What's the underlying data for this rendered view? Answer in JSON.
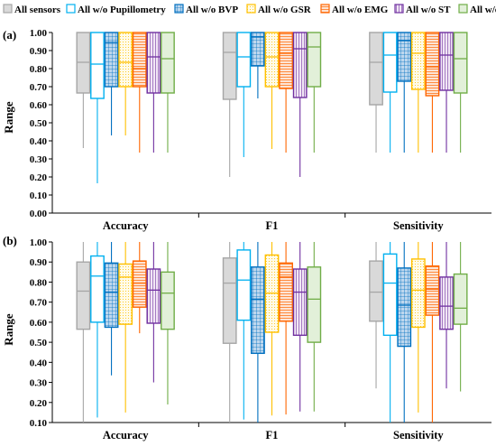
{
  "chart_data": [
    {
      "panel_label": "(a)",
      "type": "boxplot",
      "ylabel": "Range",
      "ylim": [
        0.0,
        1.0
      ],
      "yticks": [
        "0.00",
        "0.10",
        "0.20",
        "0.30",
        "0.40",
        "0.50",
        "0.60",
        "0.70",
        "0.80",
        "0.90",
        "1.00"
      ],
      "categories": [
        "Accuracy",
        "F1",
        "Sensitivity"
      ],
      "series": [
        {
          "name": "All sensors",
          "boxes": [
            {
              "min": 0.36,
              "q1": 0.665,
              "median": 0.835,
              "q3": 1.0,
              "max": 1.0
            },
            {
              "min": 0.2,
              "q1": 0.63,
              "median": 0.89,
              "q3": 1.0,
              "max": 1.0
            },
            {
              "min": 0.335,
              "q1": 0.6,
              "median": 0.835,
              "q3": 1.0,
              "max": 1.0
            }
          ]
        },
        {
          "name": "All w/o Pupillometry",
          "boxes": [
            {
              "min": 0.165,
              "q1": 0.635,
              "median": 0.825,
              "q3": 1.0,
              "max": 1.0
            },
            {
              "min": 0.31,
              "q1": 0.7,
              "median": 0.865,
              "q3": 1.0,
              "max": 1.0
            },
            {
              "min": 0.335,
              "q1": 0.67,
              "median": 0.875,
              "q3": 1.0,
              "max": 1.0
            }
          ]
        },
        {
          "name": "All w/o BVP",
          "boxes": [
            {
              "min": 0.43,
              "q1": 0.7,
              "median": 0.945,
              "q3": 1.0,
              "max": 1.0
            },
            {
              "min": 0.635,
              "q1": 0.815,
              "median": 0.975,
              "q3": 1.0,
              "max": 1.0
            },
            {
              "min": 0.335,
              "q1": 0.73,
              "median": 0.955,
              "q3": 1.0,
              "max": 1.0
            }
          ]
        },
        {
          "name": "All w/o GSR",
          "boxes": [
            {
              "min": 0.43,
              "q1": 0.7,
              "median": 0.835,
              "q3": 1.0,
              "max": 1.0
            },
            {
              "min": 0.355,
              "q1": 0.7,
              "median": 0.865,
              "q3": 1.0,
              "max": 1.0
            },
            {
              "min": 0.335,
              "q1": 0.685,
              "median": 0.885,
              "q3": 1.0,
              "max": 1.0
            }
          ]
        },
        {
          "name": "All w/o EMG",
          "boxes": [
            {
              "min": 0.335,
              "q1": 0.7,
              "median": 0.8,
              "q3": 1.0,
              "max": 1.0
            },
            {
              "min": 0.335,
              "q1": 0.69,
              "median": 0.885,
              "q3": 1.0,
              "max": 1.0
            },
            {
              "min": 0.335,
              "q1": 0.65,
              "median": 0.81,
              "q3": 1.0,
              "max": 1.0
            }
          ]
        },
        {
          "name": "All w/o ST",
          "boxes": [
            {
              "min": 0.335,
              "q1": 0.665,
              "median": 0.865,
              "q3": 1.0,
              "max": 1.0
            },
            {
              "min": 0.2,
              "q1": 0.64,
              "median": 0.91,
              "q3": 1.0,
              "max": 1.0
            },
            {
              "min": 0.335,
              "q1": 0.68,
              "median": 0.875,
              "q3": 1.0,
              "max": 1.0
            }
          ]
        },
        {
          "name": "All w/o RR",
          "boxes": [
            {
              "min": 0.335,
              "q1": 0.665,
              "median": 0.855,
              "q3": 1.0,
              "max": 1.0
            },
            {
              "min": 0.335,
              "q1": 0.7,
              "median": 0.92,
              "q3": 1.0,
              "max": 1.0
            },
            {
              "min": 0.335,
              "q1": 0.665,
              "median": 0.855,
              "q3": 1.0,
              "max": 1.0
            }
          ]
        }
      ]
    },
    {
      "panel_label": "(b)",
      "type": "boxplot",
      "ylabel": "Range",
      "ylim": [
        0.1,
        1.0
      ],
      "yticks": [
        "0.10",
        "0.20",
        "0.30",
        "0.40",
        "0.50",
        "0.60",
        "0.70",
        "0.80",
        "0.90",
        "1.00"
      ],
      "categories": [
        "Accuracy",
        "F1",
        "Sensitivity"
      ],
      "series": [
        {
          "name": "All sensors",
          "boxes": [
            {
              "min": 0.1,
              "q1": 0.565,
              "median": 0.755,
              "q3": 0.9,
              "max": 1.0
            },
            {
              "min": 0.1,
              "q1": 0.495,
              "median": 0.795,
              "q3": 0.92,
              "max": 1.0
            },
            {
              "min": 0.27,
              "q1": 0.605,
              "median": 0.75,
              "q3": 0.905,
              "max": 1.0
            }
          ]
        },
        {
          "name": "All w/o Pupillometry",
          "boxes": [
            {
              "min": 0.125,
              "q1": 0.6,
              "median": 0.83,
              "q3": 0.93,
              "max": 1.0
            },
            {
              "min": 0.115,
              "q1": 0.61,
              "median": 0.81,
              "q3": 0.96,
              "max": 1.0
            },
            {
              "min": 0.1,
              "q1": 0.535,
              "median": 0.795,
              "q3": 0.94,
              "max": 1.0
            }
          ]
        },
        {
          "name": "All w/o BVP",
          "boxes": [
            {
              "min": 0.335,
              "q1": 0.575,
              "median": 0.75,
              "q3": 0.895,
              "max": 1.0
            },
            {
              "min": 0.1,
              "q1": 0.445,
              "median": 0.715,
              "q3": 0.875,
              "max": 1.0
            },
            {
              "min": 0.1,
              "q1": 0.48,
              "median": 0.685,
              "q3": 0.87,
              "max": 1.0
            }
          ]
        },
        {
          "name": "All w/o GSR",
          "boxes": [
            {
              "min": 0.15,
              "q1": 0.59,
              "median": 0.825,
              "q3": 0.89,
              "max": 1.0
            },
            {
              "min": 0.135,
              "q1": 0.55,
              "median": 0.745,
              "q3": 0.935,
              "max": 1.0
            },
            {
              "min": 0.15,
              "q1": 0.575,
              "median": 0.76,
              "q3": 0.915,
              "max": 1.0
            }
          ]
        },
        {
          "name": "All w/o EMG",
          "boxes": [
            {
              "min": 0.545,
              "q1": 0.675,
              "median": 0.795,
              "q3": 0.905,
              "max": 1.0
            },
            {
              "min": 0.14,
              "q1": 0.605,
              "median": 0.825,
              "q3": 0.895,
              "max": 1.0
            },
            {
              "min": 0.1,
              "q1": 0.635,
              "median": 0.765,
              "q3": 0.88,
              "max": 1.0
            }
          ]
        },
        {
          "name": "All w/o ST",
          "boxes": [
            {
              "min": 0.3,
              "q1": 0.595,
              "median": 0.76,
              "q3": 0.865,
              "max": 1.0
            },
            {
              "min": 0.155,
              "q1": 0.535,
              "median": 0.75,
              "q3": 0.865,
              "max": 1.0
            },
            {
              "min": 0.27,
              "q1": 0.565,
              "median": 0.68,
              "q3": 0.825,
              "max": 1.0
            }
          ]
        },
        {
          "name": "All w/o RR",
          "boxes": [
            {
              "min": 0.19,
              "q1": 0.565,
              "median": 0.745,
              "q3": 0.85,
              "max": 1.0
            },
            {
              "min": 0.155,
              "q1": 0.5,
              "median": 0.715,
              "q3": 0.875,
              "max": 1.0
            },
            {
              "min": 0.255,
              "q1": 0.59,
              "median": 0.67,
              "q3": 0.84,
              "max": 1.0
            }
          ]
        }
      ]
    }
  ],
  "legend": {
    "placement": "top",
    "items": [
      {
        "label": "All sensors",
        "color": "#a6a6a6",
        "fill": "#d9d9d9",
        "pattern": "solid"
      },
      {
        "label": "All w/o Pupillometry",
        "color": "#00b0f0",
        "fill": "#ffffff",
        "pattern": "none"
      },
      {
        "label": "All w/o BVP",
        "color": "#0070c0",
        "fill": "#9dc3e6",
        "pattern": "grid"
      },
      {
        "label": "All w/o GSR",
        "color": "#ffc000",
        "fill": "#fff2cc",
        "pattern": "dots"
      },
      {
        "label": "All w/o EMG",
        "color": "#ff6600",
        "fill": "#f8cbad",
        "pattern": "hlines"
      },
      {
        "label": "All w/o ST",
        "color": "#7030a0",
        "fill": "#e2cdea",
        "pattern": "vlines"
      },
      {
        "label": "All w/o RR",
        "color": "#70ad47",
        "fill": "#e2f0d9",
        "pattern": "light"
      }
    ]
  }
}
